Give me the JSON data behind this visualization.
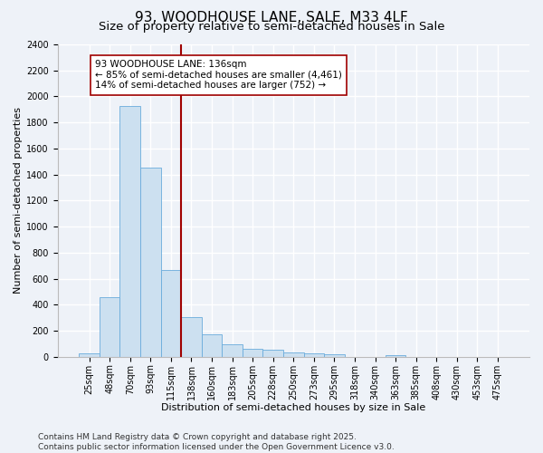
{
  "title": "93, WOODHOUSE LANE, SALE, M33 4LF",
  "subtitle": "Size of property relative to semi-detached houses in Sale",
  "xlabel": "Distribution of semi-detached houses by size in Sale",
  "ylabel": "Number of semi-detached properties",
  "categories": [
    "25sqm",
    "48sqm",
    "70sqm",
    "93sqm",
    "115sqm",
    "138sqm",
    "160sqm",
    "183sqm",
    "205sqm",
    "228sqm",
    "250sqm",
    "273sqm",
    "295sqm",
    "318sqm",
    "340sqm",
    "363sqm",
    "385sqm",
    "408sqm",
    "430sqm",
    "453sqm",
    "475sqm"
  ],
  "values": [
    25,
    455,
    1930,
    1455,
    670,
    305,
    175,
    95,
    60,
    55,
    35,
    25,
    20,
    0,
    0,
    15,
    0,
    0,
    0,
    0,
    0
  ],
  "bar_color": "#cce0f0",
  "bar_edge_color": "#6aacdc",
  "vline_x_index": 5,
  "vline_color": "#a00000",
  "annotation_text": "93 WOODHOUSE LANE: 136sqm\n← 85% of semi-detached houses are smaller (4,461)\n14% of semi-detached houses are larger (752) →",
  "annotation_box_color": "#ffffff",
  "annotation_box_edge": "#a00000",
  "ylim": [
    0,
    2400
  ],
  "yticks": [
    0,
    200,
    400,
    600,
    800,
    1000,
    1200,
    1400,
    1600,
    1800,
    2000,
    2200,
    2400
  ],
  "footer1": "Contains HM Land Registry data © Crown copyright and database right 2025.",
  "footer2": "Contains public sector information licensed under the Open Government Licence v3.0.",
  "background_color": "#eef2f8",
  "plot_background": "#eef2f8",
  "title_fontsize": 11,
  "subtitle_fontsize": 9.5,
  "axis_label_fontsize": 8,
  "tick_fontsize": 7,
  "annotation_fontsize": 7.5,
  "footer_fontsize": 6.5,
  "grid_color": "#ffffff",
  "grid_linewidth": 1.0
}
